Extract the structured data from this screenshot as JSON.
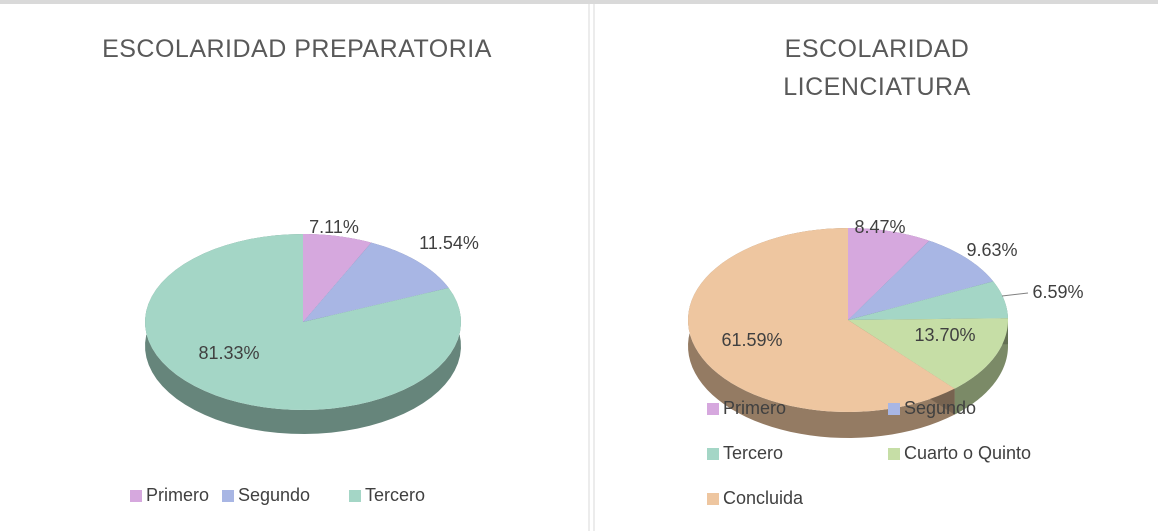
{
  "chart_data": [
    {
      "type": "pie",
      "title": "ESCOLARIDAD PREPARATORIA",
      "categories": [
        "Primero",
        "Segundo",
        "Tercero"
      ],
      "values": [
        7.11,
        11.54,
        81.33
      ],
      "value_labels": [
        "7.11%",
        "11.54%",
        "81.33%"
      ],
      "colors": [
        "#d6a8de",
        "#a8b6e4",
        "#a4d6c6"
      ],
      "legend": "bottom"
    },
    {
      "type": "pie",
      "title": "ESCOLARIDAD LICENCIATURA",
      "categories": [
        "Primero",
        "Segundo",
        "Tercero",
        "Cuarto o Quinto",
        "Concluida"
      ],
      "values": [
        8.47,
        9.63,
        6.59,
        13.7,
        61.59
      ],
      "value_labels": [
        "8.47%",
        "9.63%",
        "6.59%",
        "13.70%",
        "61.59%"
      ],
      "colors": [
        "#d6a8de",
        "#a8b6e4",
        "#a4d6c6",
        "#c6dea6",
        "#eec6a0"
      ],
      "legend": "bottom"
    }
  ]
}
